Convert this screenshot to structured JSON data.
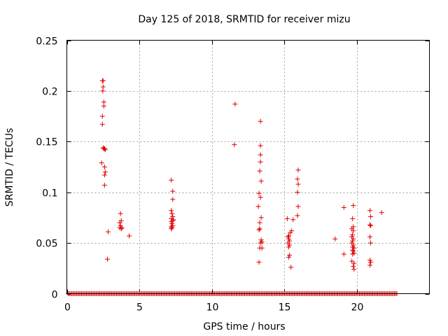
{
  "chart_data": {
    "type": "scatter",
    "title": "Day 125 of 2018, SRMTID for receiver mizu",
    "xlabel": "GPS time / hours",
    "ylabel": "SRMTID / TECUs",
    "xlim": [
      0,
      25
    ],
    "ylim": [
      0,
      0.25
    ],
    "grid": true,
    "color": "#e00000",
    "marker": "plus",
    "x_ticks": [
      {
        "value": 0,
        "label": "0"
      },
      {
        "value": 5,
        "label": "5"
      },
      {
        "value": 10,
        "label": "10"
      },
      {
        "value": 15,
        "label": "15"
      },
      {
        "value": 20,
        "label": "20"
      }
    ],
    "y_ticks": [
      {
        "value": 0,
        "label": "0"
      },
      {
        "value": 0.05,
        "label": "0.05"
      },
      {
        "value": 0.1,
        "label": "0.1"
      },
      {
        "value": 0.15,
        "label": "0.15"
      },
      {
        "value": 0.2,
        "label": "0.2"
      },
      {
        "value": 0.25,
        "label": "0.25"
      }
    ],
    "baseline": {
      "y": 0,
      "x_start": 0.1,
      "x_end": 22.8,
      "step": 0.0833
    },
    "points": [
      [
        2.45,
        0.21
      ],
      [
        2.5,
        0.21
      ],
      [
        2.5,
        0.204
      ],
      [
        2.48,
        0.2
      ],
      [
        2.55,
        0.189
      ],
      [
        2.55,
        0.185
      ],
      [
        2.45,
        0.175
      ],
      [
        2.45,
        0.167
      ],
      [
        2.5,
        0.144
      ],
      [
        2.55,
        0.143
      ],
      [
        2.6,
        0.143
      ],
      [
        2.65,
        0.142
      ],
      [
        2.4,
        0.129
      ],
      [
        2.6,
        0.125
      ],
      [
        2.65,
        0.12
      ],
      [
        2.6,
        0.117
      ],
      [
        2.6,
        0.107
      ],
      [
        2.85,
        0.061
      ],
      [
        2.8,
        0.034
      ],
      [
        3.7,
        0.079
      ],
      [
        3.75,
        0.072
      ],
      [
        3.65,
        0.07
      ],
      [
        3.7,
        0.067
      ],
      [
        3.65,
        0.065
      ],
      [
        3.8,
        0.065
      ],
      [
        3.75,
        0.064
      ],
      [
        4.3,
        0.057
      ],
      [
        7.2,
        0.112
      ],
      [
        7.3,
        0.101
      ],
      [
        7.3,
        0.093
      ],
      [
        7.2,
        0.082
      ],
      [
        7.25,
        0.079
      ],
      [
        7.3,
        0.076
      ],
      [
        7.2,
        0.074
      ],
      [
        7.35,
        0.073
      ],
      [
        7.3,
        0.072
      ],
      [
        7.2,
        0.071
      ],
      [
        7.25,
        0.069
      ],
      [
        7.3,
        0.067
      ],
      [
        7.2,
        0.066
      ],
      [
        7.25,
        0.065
      ],
      [
        7.2,
        0.064
      ],
      [
        11.6,
        0.187
      ],
      [
        11.55,
        0.147
      ],
      [
        13.35,
        0.17
      ],
      [
        13.35,
        0.146
      ],
      [
        13.35,
        0.137
      ],
      [
        13.35,
        0.13
      ],
      [
        13.3,
        0.121
      ],
      [
        13.4,
        0.111
      ],
      [
        13.25,
        0.099
      ],
      [
        13.35,
        0.095
      ],
      [
        13.2,
        0.086
      ],
      [
        13.4,
        0.075
      ],
      [
        13.3,
        0.07
      ],
      [
        13.3,
        0.064
      ],
      [
        13.25,
        0.063
      ],
      [
        13.4,
        0.053
      ],
      [
        13.45,
        0.051
      ],
      [
        13.35,
        0.05
      ],
      [
        13.3,
        0.045
      ],
      [
        13.45,
        0.045
      ],
      [
        13.25,
        0.031
      ],
      [
        15.6,
        0.073
      ],
      [
        15.2,
        0.074
      ],
      [
        15.5,
        0.062
      ],
      [
        15.4,
        0.06
      ],
      [
        15.3,
        0.057
      ],
      [
        15.25,
        0.056
      ],
      [
        15.3,
        0.054
      ],
      [
        15.35,
        0.052
      ],
      [
        15.25,
        0.05
      ],
      [
        15.35,
        0.048
      ],
      [
        15.3,
        0.046
      ],
      [
        15.35,
        0.038
      ],
      [
        15.3,
        0.036
      ],
      [
        15.45,
        0.026
      ],
      [
        15.95,
        0.122
      ],
      [
        15.9,
        0.113
      ],
      [
        15.95,
        0.108
      ],
      [
        15.9,
        0.1
      ],
      [
        15.95,
        0.086
      ],
      [
        15.9,
        0.077
      ],
      [
        18.5,
        0.054
      ],
      [
        19.1,
        0.085
      ],
      [
        19.1,
        0.039
      ],
      [
        19.75,
        0.087
      ],
      [
        19.7,
        0.074
      ],
      [
        19.75,
        0.066
      ],
      [
        19.65,
        0.064
      ],
      [
        19.75,
        0.062
      ],
      [
        19.7,
        0.058
      ],
      [
        19.65,
        0.056
      ],
      [
        19.75,
        0.054
      ],
      [
        19.7,
        0.052
      ],
      [
        19.65,
        0.05
      ],
      [
        19.75,
        0.048
      ],
      [
        19.7,
        0.046
      ],
      [
        19.8,
        0.045
      ],
      [
        19.7,
        0.043
      ],
      [
        19.75,
        0.042
      ],
      [
        19.8,
        0.04
      ],
      [
        19.7,
        0.039
      ],
      [
        19.65,
        0.032
      ],
      [
        19.8,
        0.03
      ],
      [
        19.75,
        0.027
      ],
      [
        19.8,
        0.024
      ],
      [
        20.9,
        0.082
      ],
      [
        20.95,
        0.076
      ],
      [
        20.9,
        0.068
      ],
      [
        20.95,
        0.067
      ],
      [
        20.9,
        0.056
      ],
      [
        20.95,
        0.05
      ],
      [
        20.9,
        0.033
      ],
      [
        20.95,
        0.031
      ],
      [
        20.9,
        0.028
      ],
      [
        21.7,
        0.08
      ]
    ]
  }
}
